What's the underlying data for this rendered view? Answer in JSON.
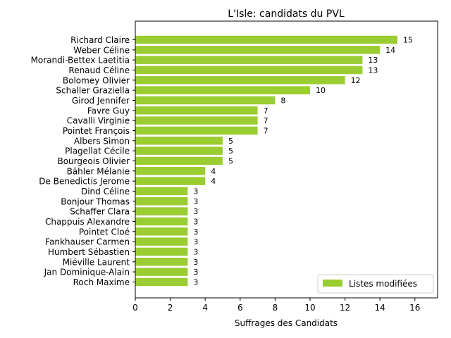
{
  "chart_data": {
    "type": "bar",
    "orientation": "horizontal",
    "title": "L'Isle: candidats du PVL",
    "xlabel": "Suffrages des Candidats",
    "ylabel": "",
    "xlim": [
      0,
      17.3
    ],
    "xticks": [
      "0",
      "2",
      "4",
      "6",
      "8",
      "10",
      "12",
      "14",
      "16"
    ],
    "grid": false,
    "legend_position": "lower-right",
    "series": [
      {
        "name": "Listes modifiées",
        "color": "#9acd32"
      }
    ],
    "categories": [
      "Richard Claire",
      "Weber Céline",
      "Morandi-Bettex Laetitia",
      "Renaud Céline",
      "Bolomey Olivier",
      "Schaller Graziella",
      "Girod Jennifer",
      "Favre Guy",
      "Cavalli Virginie",
      "Pointet François",
      "Albers Simon",
      "Plagellat Cécile",
      "Bourgeois Olivier",
      "Bähler Mélanie",
      "De Benedictis Jerome",
      "Dind Céline",
      "Bonjour Thomas",
      "Schaffer Clara",
      "Chappuis Alexandre",
      "Pointet Cloé",
      "Fankhauser Carmen",
      "Humbert Sébastien",
      "Miéville Laurent",
      "Jan Dominique-Alain",
      "Roch Maxime"
    ],
    "values": [
      15,
      14,
      13,
      13,
      12,
      10,
      8,
      7,
      7,
      7,
      5,
      5,
      5,
      4,
      4,
      3,
      3,
      3,
      3,
      3,
      3,
      3,
      3,
      3,
      3
    ]
  }
}
